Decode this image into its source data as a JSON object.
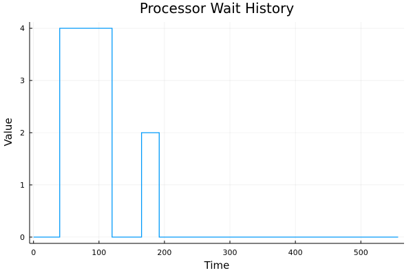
{
  "chart_data": {
    "type": "line",
    "step": "post",
    "title": "Processor Wait History",
    "xlabel": "Time",
    "ylabel": "Value",
    "xlim": [
      -6,
      566
    ],
    "ylim": [
      -0.12,
      4.12
    ],
    "xticks": [
      0,
      100,
      200,
      300,
      400,
      500
    ],
    "yticks": [
      0,
      1,
      2,
      3,
      4
    ],
    "grid": true,
    "legend": "none",
    "series": [
      {
        "color": "#009AFA",
        "x": [
          0,
          40,
          120,
          165,
          192,
          557
        ],
        "y": [
          0,
          4,
          0,
          2,
          0,
          0
        ]
      }
    ]
  }
}
